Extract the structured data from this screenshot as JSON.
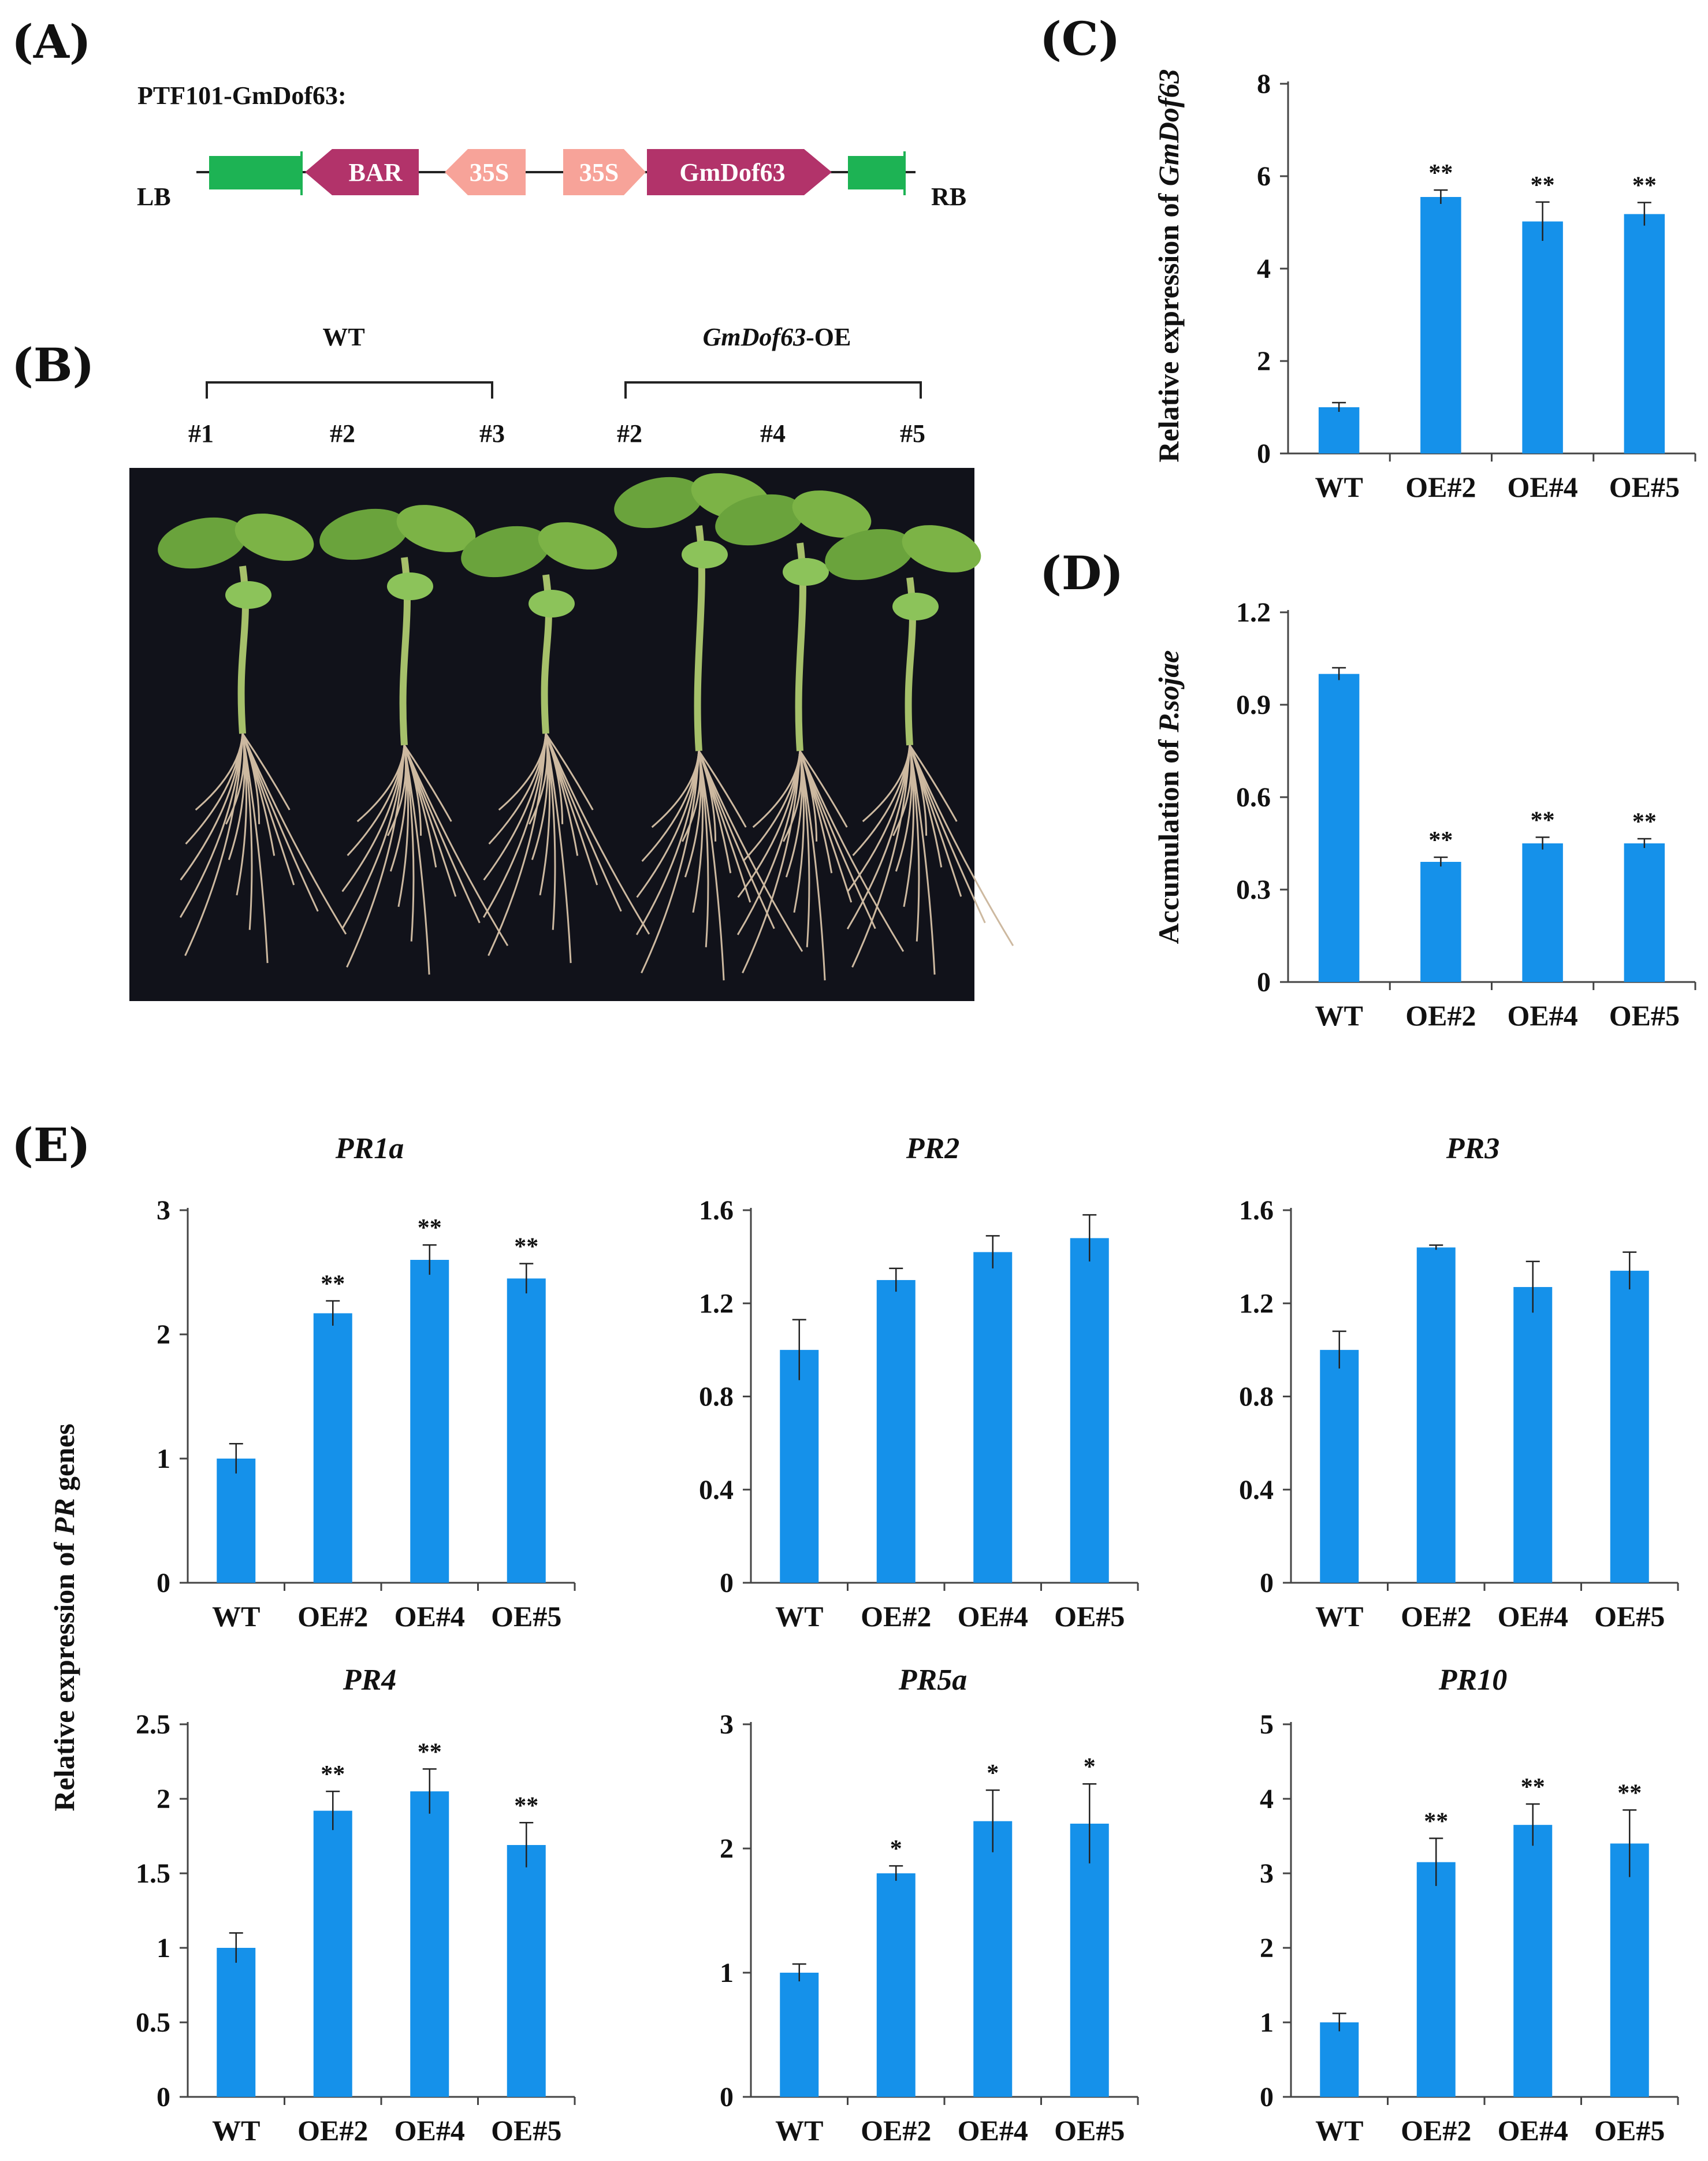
{
  "panels": {
    "A": "(A)",
    "B": "(B)",
    "C": "(C)",
    "D": "(D)",
    "E": "(E)"
  },
  "construct": {
    "title": "PTF101-GmDof63:",
    "lb": "LB",
    "rb": "RB",
    "bar": "BAR",
    "p1": "35S",
    "p2": "35S",
    "gene": "GmDof63",
    "colors": {
      "border": "#1DB354",
      "arrow": "#B2336A",
      "promoter": "#F7A399"
    }
  },
  "photo": {
    "wt_label": "WT",
    "oe_label_italic": "GmDof63",
    "oe_label_suffix": "-OE",
    "wt_lines": [
      "#1",
      "#2",
      "#3"
    ],
    "oe_lines": [
      "#2",
      "#4",
      "#5"
    ]
  },
  "shared_ylabel": {
    "pre": "Relative expression of ",
    "ital": "PR",
    "post": " genes"
  },
  "chart_data": [
    {
      "id": "C",
      "type": "bar",
      "title": "",
      "ylabel_pre": "Relative expression of ",
      "ylabel_ital": "GmDof63",
      "categories": [
        "WT",
        "OE#2",
        "OE#4",
        "OE#5"
      ],
      "values": [
        1.0,
        5.55,
        5.02,
        5.18
      ],
      "errors": [
        0.1,
        0.15,
        0.42,
        0.25
      ],
      "sig": [
        "",
        "**",
        "**",
        "**"
      ],
      "ylim": [
        0,
        8
      ],
      "ticks": [
        "0",
        "2",
        "4",
        "6",
        "8"
      ],
      "tickvals": [
        0,
        2,
        4,
        6,
        8
      ]
    },
    {
      "id": "D",
      "type": "bar",
      "title": "",
      "ylabel_pre": "Accumulation of ",
      "ylabel_ital": "P.sojae",
      "categories": [
        "WT",
        "OE#2",
        "OE#4",
        "OE#5"
      ],
      "values": [
        1.0,
        0.39,
        0.45,
        0.45
      ],
      "errors": [
        0.02,
        0.015,
        0.02,
        0.015
      ],
      "sig": [
        "",
        "**",
        "**",
        "**"
      ],
      "ylim": [
        0,
        1.2
      ],
      "ticks": [
        "0",
        "0.3",
        "0.6",
        "0.9",
        "1.2"
      ],
      "tickvals": [
        0,
        0.3,
        0.6,
        0.9,
        1.2
      ]
    },
    {
      "id": "PR1a",
      "type": "bar",
      "title": "PR1a",
      "categories": [
        "WT",
        "OE#2",
        "OE#4",
        "OE#5"
      ],
      "values": [
        1.0,
        2.17,
        2.6,
        2.45
      ],
      "errors": [
        0.12,
        0.1,
        0.12,
        0.12
      ],
      "sig": [
        "",
        "**",
        "**",
        "**"
      ],
      "ylim": [
        0,
        3
      ],
      "ticks": [
        "0",
        "1",
        "2",
        "3"
      ],
      "tickvals": [
        0,
        1,
        2,
        3
      ]
    },
    {
      "id": "PR2",
      "type": "bar",
      "title": "PR2",
      "categories": [
        "WT",
        "OE#2",
        "OE#4",
        "OE#5"
      ],
      "values": [
        1.0,
        1.3,
        1.42,
        1.48
      ],
      "errors": [
        0.13,
        0.05,
        0.07,
        0.1
      ],
      "sig": [
        "",
        "",
        "",
        ""
      ],
      "ylim": [
        0,
        1.6
      ],
      "ticks": [
        "0",
        "0.4",
        "0.8",
        "1.2",
        "1.6"
      ],
      "tickvals": [
        0,
        0.4,
        0.8,
        1.2,
        1.6
      ]
    },
    {
      "id": "PR3",
      "type": "bar",
      "title": "PR3",
      "categories": [
        "WT",
        "OE#2",
        "OE#4",
        "OE#5"
      ],
      "values": [
        1.0,
        1.44,
        1.27,
        1.34
      ],
      "errors": [
        0.08,
        0.01,
        0.11,
        0.08
      ],
      "sig": [
        "",
        "",
        "",
        ""
      ],
      "ylim": [
        0,
        1.6
      ],
      "ticks": [
        "0",
        "0.4",
        "0.8",
        "1.2",
        "1.6"
      ],
      "tickvals": [
        0,
        0.4,
        0.8,
        1.2,
        1.6
      ]
    },
    {
      "id": "PR4",
      "type": "bar",
      "title": "PR4",
      "categories": [
        "WT",
        "OE#2",
        "OE#4",
        "OE#5"
      ],
      "values": [
        1.0,
        1.92,
        2.05,
        1.69
      ],
      "errors": [
        0.1,
        0.13,
        0.15,
        0.15
      ],
      "sig": [
        "",
        "**",
        "**",
        "**"
      ],
      "ylim": [
        0,
        2.5
      ],
      "ticks": [
        "0",
        "0.5",
        "1",
        "1.5",
        "2",
        "2.5"
      ],
      "tickvals": [
        0,
        0.5,
        1,
        1.5,
        2,
        2.5
      ]
    },
    {
      "id": "PR5a",
      "type": "bar",
      "title": "PR5a",
      "categories": [
        "WT",
        "OE#2",
        "OE#4",
        "OE#5"
      ],
      "values": [
        1.0,
        1.8,
        2.22,
        2.2
      ],
      "errors": [
        0.07,
        0.06,
        0.25,
        0.32
      ],
      "sig": [
        "",
        "*",
        "*",
        "*"
      ],
      "ylim": [
        0,
        3
      ],
      "ticks": [
        "0",
        "1",
        "2",
        "3"
      ],
      "tickvals": [
        0,
        1,
        2,
        3
      ]
    },
    {
      "id": "PR10",
      "type": "bar",
      "title": "PR10",
      "categories": [
        "WT",
        "OE#2",
        "OE#4",
        "OE#5"
      ],
      "values": [
        1.0,
        3.15,
        3.65,
        3.4
      ],
      "errors": [
        0.12,
        0.32,
        0.28,
        0.45
      ],
      "sig": [
        "",
        "**",
        "**",
        "**"
      ],
      "ylim": [
        0,
        5
      ],
      "ticks": [
        "0",
        "1",
        "2",
        "3",
        "4",
        "5"
      ],
      "tickvals": [
        0,
        1,
        2,
        3,
        4,
        5
      ]
    }
  ]
}
